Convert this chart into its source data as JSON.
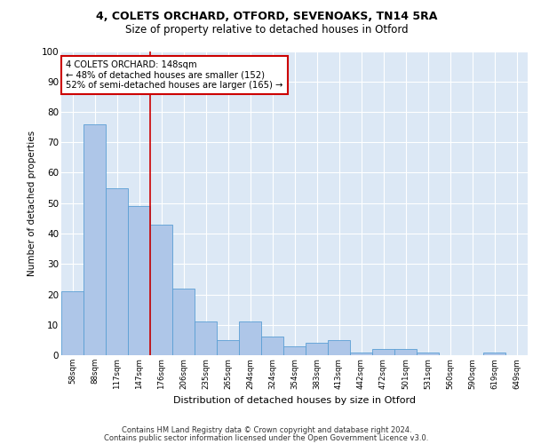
{
  "title1": "4, COLETS ORCHARD, OTFORD, SEVENOAKS, TN14 5RA",
  "title2": "Size of property relative to detached houses in Otford",
  "xlabel": "Distribution of detached houses by size in Otford",
  "ylabel": "Number of detached properties",
  "categories": [
    "58sqm",
    "88sqm",
    "117sqm",
    "147sqm",
    "176sqm",
    "206sqm",
    "235sqm",
    "265sqm",
    "294sqm",
    "324sqm",
    "354sqm",
    "383sqm",
    "413sqm",
    "442sqm",
    "472sqm",
    "501sqm",
    "531sqm",
    "560sqm",
    "590sqm",
    "619sqm",
    "649sqm"
  ],
  "values": [
    21,
    76,
    55,
    49,
    43,
    22,
    11,
    5,
    11,
    6,
    3,
    4,
    5,
    1,
    2,
    2,
    1,
    0,
    0,
    1,
    0
  ],
  "bar_color": "#aec6e8",
  "bar_edge_color": "#5a9fd4",
  "annotation_text": "4 COLETS ORCHARD: 148sqm\n← 48% of detached houses are smaller (152)\n52% of semi-detached houses are larger (165) →",
  "vline_x": 3.5,
  "vline_color": "#cc0000",
  "annotation_box_edge": "#cc0000",
  "footer1": "Contains HM Land Registry data © Crown copyright and database right 2024.",
  "footer2": "Contains public sector information licensed under the Open Government Licence v3.0.",
  "ylim": [
    0,
    100
  ],
  "yticks": [
    0,
    10,
    20,
    30,
    40,
    50,
    60,
    70,
    80,
    90,
    100
  ],
  "background_color": "#dce8f5",
  "fig_bg": "#ffffff"
}
